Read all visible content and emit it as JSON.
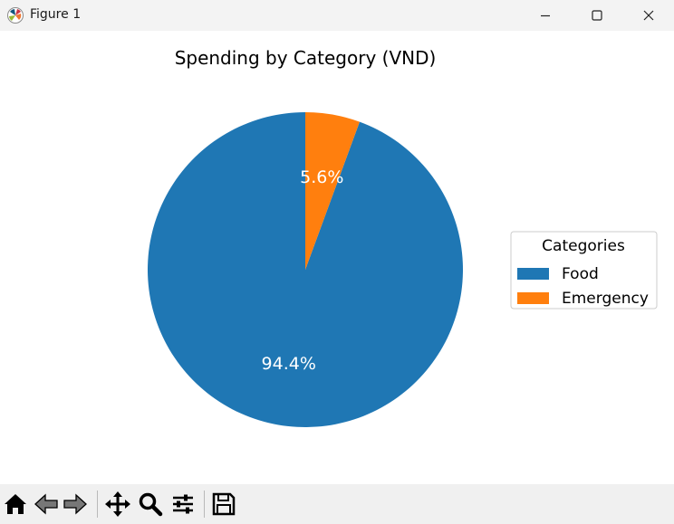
{
  "window": {
    "title": "Figure 1"
  },
  "colors": {
    "series": [
      "#1f77b4",
      "#ff7f0e"
    ]
  },
  "chart_data": {
    "type": "pie",
    "title": "Spending by Category (VND)",
    "labels": [
      "Food",
      "Emergency"
    ],
    "values": [
      94.4,
      5.6
    ],
    "autopct": [
      "94.4%",
      "5.6%"
    ],
    "start_angle": 90,
    "legend": {
      "title": "Categories",
      "placement": "center-right"
    }
  },
  "toolbar": {
    "buttons": [
      "home-icon",
      "back-icon",
      "forward-icon",
      "pan-icon",
      "zoom-icon",
      "configure-subplots-icon",
      "save-icon"
    ]
  }
}
